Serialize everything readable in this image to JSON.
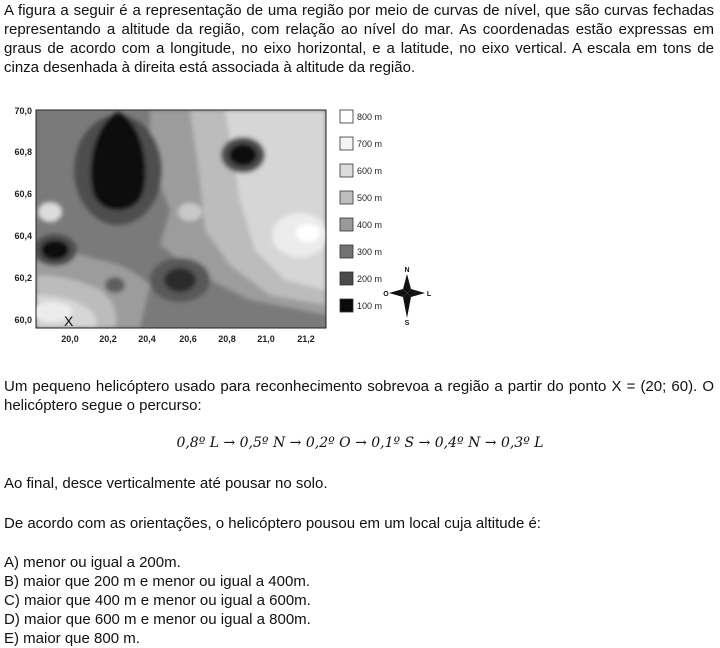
{
  "intro": "A figura a seguir é a representação de uma região por meio de curvas de nível, que são curvas fechadas representando a altitude da região, com relação ao nível do mar. As coordenadas estão expressas em graus de acordo com a longitude, no eixo horizontal, e a latitude, no eixo vertical. A escala em tons de cinza desenhada à direita está associada à altitude da região.",
  "figure": {
    "y_ticks": [
      "70,0",
      "60,8",
      "60,6",
      "60,4",
      "60,2",
      "60,0"
    ],
    "x_ticks": [
      "20,0",
      "20,2",
      "20,4",
      "20,6",
      "20,8",
      "21,0",
      "21,2"
    ],
    "start_marker": "X",
    "legend": [
      {
        "label": "800 m",
        "color": "#ffffff"
      },
      {
        "label": "700 m",
        "color": "#f4f4f4"
      },
      {
        "label": "600 m",
        "color": "#dcdcdc"
      },
      {
        "label": "500 m",
        "color": "#bebebe"
      },
      {
        "label": "400 m",
        "color": "#9a9a9a"
      },
      {
        "label": "300 m",
        "color": "#727272"
      },
      {
        "label": "200 m",
        "color": "#4a4a4a"
      },
      {
        "label": "100 m",
        "color": "#0a0a0a"
      }
    ],
    "compass": {
      "north": "N",
      "south": "S",
      "east": "L",
      "west": "O"
    }
  },
  "helicopter_text": "Um pequeno helicóptero usado para reconhecimento sobrevoa a região a partir do ponto X = (20; 60). O helicóptero segue o percurso:",
  "route": "0,8º L → 0,5º N → 0,2º O → 0,1º S → 0,4º N → 0,3º L",
  "landing_text": "Ao final, desce verticalmente até pousar no solo.",
  "question": "De acordo com as orientações, o helicóptero pousou em um local cuja altitude é:",
  "options": [
    "A) menor ou igual a 200m.",
    "B) maior que 200 m e menor ou igual a 400m.",
    "C) maior que 400 m e menor ou igual a 600m.",
    "D) maior que 600 m e menor ou igual a 800m.",
    "E) maior que 800 m."
  ]
}
